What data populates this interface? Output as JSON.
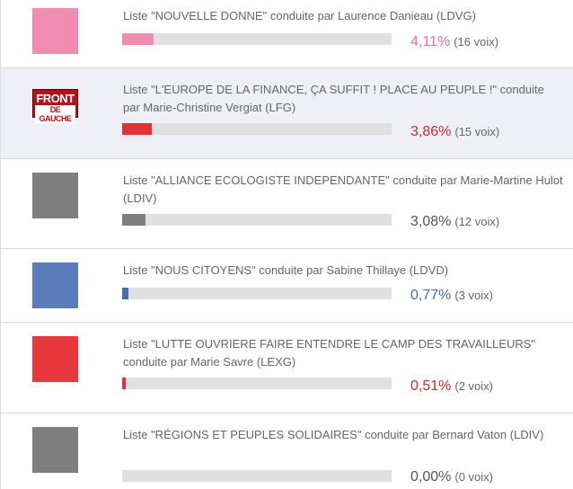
{
  "results": [
    {
      "label": "Liste \"NOUVELLE DONNE\" conduite par Laurence Danieau (LDVG)",
      "swatch_color": "#f08caf",
      "bar_color": "#f08caf",
      "pct_color": "#ea6e9a",
      "share_percent": 4.11,
      "percent": "4,11%",
      "votes": "(16 voix)"
    },
    {
      "label": "Liste \"L'EUROPE DE LA FINANCE, ÇA SUFFIT ! PLACE AU PEUPLE !\" conduite par Marie-Christine Vergiat (LFG)",
      "logo_line1": "FRONT",
      "logo_line2": "DE GAUCHE",
      "bar_color": "#e03336",
      "pct_color": "#d7262c",
      "share_percent": 3.86,
      "percent": "3,86%",
      "votes": "(15 voix)"
    },
    {
      "label": "Liste \"ALLIANCE ECOLOGISTE INDEPENDANTE\" conduite par Marie-Martine Hulot (LDIV)",
      "swatch_color": "#7f7f7f",
      "bar_color": "#7f7f7f",
      "pct_color": "#555555",
      "share_percent": 3.08,
      "percent": "3,08%",
      "votes": "(12 voix)"
    },
    {
      "label": "Liste \"NOUS CITOYENS\" conduite par Sabine Thillaye (LDVD)",
      "swatch_color": "#5a7dba",
      "bar_color": "#4a6cb0",
      "pct_color": "#4a6ca8",
      "share_percent": 0.77,
      "percent": "0,77%",
      "votes": "(3 voix)"
    },
    {
      "label": "Liste \"LUTTE OUVRIERE FAIRE ENTENDRE LE CAMP DES TRAVAILLEURS\" conduite par Marie Savre (LEXG)",
      "swatch_color": "#e8383d",
      "bar_color": "#e03336",
      "pct_color": "#d7262c",
      "share_percent": 0.51,
      "percent": "0,51%",
      "votes": "(2 voix)"
    },
    {
      "label": "Liste \"RÉGIONS ET PEUPLES SOLIDAIRES\" conduite par Bernard Vaton (LDIV)",
      "swatch_color": "#7f7f7f",
      "bar_color": "#7f7f7f",
      "pct_color": "#555555",
      "share_percent": 0.0,
      "percent": "0,00%",
      "votes": "(0 voix)"
    }
  ]
}
